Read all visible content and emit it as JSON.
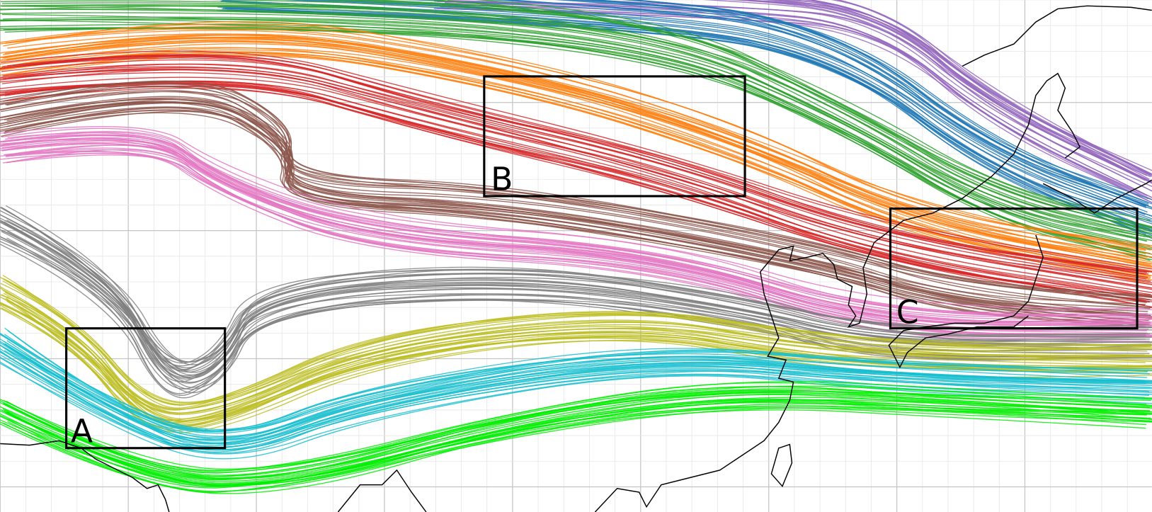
{
  "boxes": [
    {
      "label": "A"
    },
    {
      "label": "B"
    },
    {
      "label": "C"
    }
  ]
}
